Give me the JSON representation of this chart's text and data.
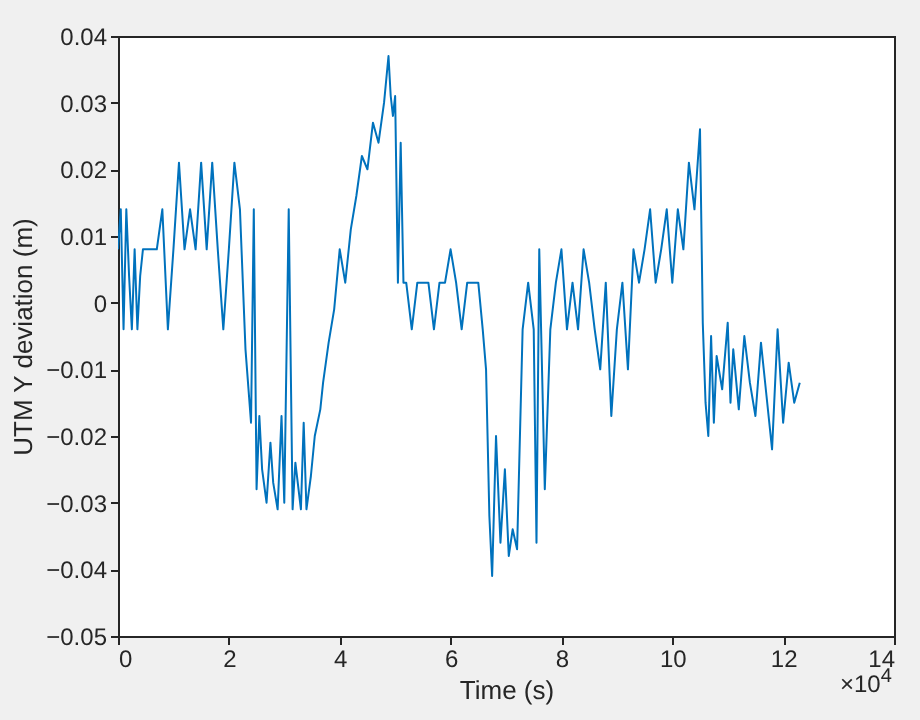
{
  "chart_data": {
    "type": "line",
    "xlabel": "Time (s)",
    "ylabel": "UTM Y deviation (m)",
    "x": [
      0,
      0.05,
      0.1,
      0.15,
      0.2,
      0.25,
      0.3,
      0.35,
      0.4,
      0.45,
      0.5,
      0.6,
      0.7,
      0.8,
      0.9,
      1,
      1.1,
      1.2,
      1.3,
      1.4,
      1.5,
      1.6,
      1.7,
      1.8,
      1.9,
      2,
      2.1,
      2.2,
      2.3,
      2.4,
      2.45,
      2.5,
      2.55,
      2.6,
      2.68,
      2.75,
      2.8,
      2.88,
      2.95,
      3,
      3.08,
      3.15,
      3.2,
      3.3,
      3.35,
      3.4,
      3.48,
      3.55,
      3.65,
      3.7,
      3.8,
      3.9,
      4,
      4.1,
      4.2,
      4.3,
      4.4,
      4.5,
      4.6,
      4.7,
      4.8,
      4.88,
      4.92,
      4.96,
      5,
      5.05,
      5.1,
      5.15,
      5.2,
      5.3,
      5.4,
      5.5,
      5.6,
      5.7,
      5.8,
      5.9,
      6,
      6.1,
      6.2,
      6.3,
      6.4,
      6.5,
      6.58,
      6.64,
      6.7,
      6.75,
      6.82,
      6.9,
      6.98,
      7.05,
      7.12,
      7.2,
      7.3,
      7.4,
      7.5,
      7.55,
      7.6,
      7.7,
      7.8,
      7.9,
      8,
      8.1,
      8.2,
      8.3,
      8.4,
      8.5,
      8.6,
      8.7,
      8.8,
      8.9,
      9,
      9.1,
      9.2,
      9.3,
      9.4,
      9.5,
      9.6,
      9.7,
      9.8,
      9.9,
      10,
      10.1,
      10.2,
      10.3,
      10.4,
      10.5,
      10.55,
      10.6,
      10.65,
      10.7,
      10.75,
      10.8,
      10.9,
      11,
      11.05,
      11.1,
      11.2,
      11.3,
      11.4,
      11.5,
      11.6,
      11.7,
      11.8,
      11.9,
      12,
      12.1,
      12.2,
      12.3
    ],
    "xlim": [
      0,
      14
    ],
    "ylim": [
      -0.05,
      0.04
    ],
    "xticks": [
      0,
      2,
      4,
      6,
      8,
      10,
      12,
      14
    ],
    "yticks": [
      -0.05,
      -0.04,
      -0.03,
      -0.02,
      -0.01,
      {
        "value": 0,
        "label": "0"
      },
      0.01,
      0.02,
      0.03,
      0.04
    ],
    "annotations": [
      "×10$^{4}$"
    ],
    "series": [
      {
        "color": "#0072bd",
        "values": [
          0.008,
          0.014,
          -0.004,
          0.014,
          0.004,
          -0.004,
          0.008,
          -0.004,
          0.004,
          0.008,
          0.008,
          0.008,
          0.008,
          0.014,
          -0.004,
          0.008,
          0.021,
          0.008,
          0.014,
          0.008,
          0.021,
          0.008,
          0.021,
          0.008,
          -0.004,
          0.008,
          0.021,
          0.014,
          -0.007,
          -0.018,
          0.014,
          -0.028,
          -0.017,
          -0.025,
          -0.03,
          -0.021,
          -0.027,
          -0.031,
          -0.017,
          -0.03,
          0.014,
          -0.031,
          -0.024,
          -0.031,
          -0.018,
          -0.031,
          -0.026,
          -0.02,
          -0.016,
          -0.012,
          -0.006,
          -0.001,
          0.008,
          0.003,
          0.011,
          0.016,
          0.022,
          0.02,
          0.027,
          0.024,
          0.03,
          0.037,
          0.031,
          0.028,
          0.031,
          0.003,
          0.024,
          0.003,
          0.003,
          -0.004,
          0.003,
          0.003,
          0.003,
          -0.004,
          0.003,
          0.003,
          0.008,
          0.003,
          -0.004,
          0.003,
          0.003,
          0.003,
          -0.004,
          -0.01,
          -0.032,
          -0.041,
          -0.02,
          -0.036,
          -0.025,
          -0.038,
          -0.034,
          -0.037,
          -0.004,
          0.003,
          -0.004,
          -0.036,
          0.008,
          -0.028,
          -0.004,
          0.003,
          0.008,
          -0.004,
          0.003,
          -0.004,
          0.008,
          0.003,
          -0.004,
          -0.01,
          0.003,
          -0.017,
          -0.004,
          0.003,
          -0.01,
          0.008,
          0.003,
          0.008,
          0.014,
          0.003,
          0.008,
          0.014,
          0.003,
          0.014,
          0.008,
          0.021,
          0.014,
          0.026,
          -0.003,
          -0.015,
          -0.02,
          -0.005,
          -0.018,
          -0.008,
          -0.013,
          -0.003,
          -0.015,
          -0.007,
          -0.016,
          -0.005,
          -0.012,
          -0.017,
          -0.006,
          -0.014,
          -0.022,
          -0.004,
          -0.018,
          -0.009,
          -0.015,
          -0.012
        ]
      }
    ]
  }
}
